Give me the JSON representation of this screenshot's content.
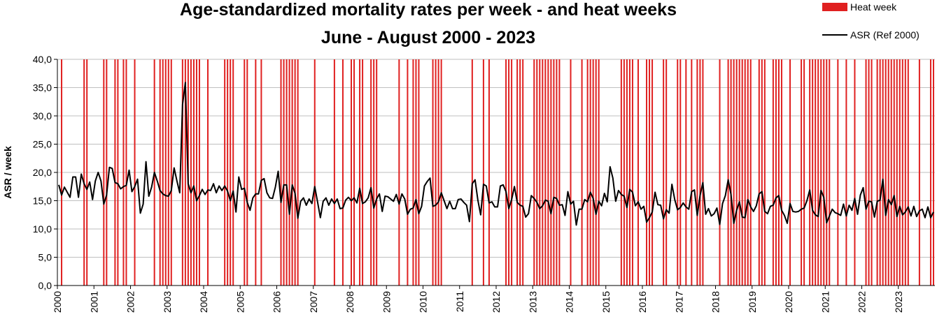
{
  "chart_data": {
    "type": "line",
    "title": "Age-standardized mortality rates per week - and heat weeks",
    "subtitle": "June - August  2000 - 2023",
    "y_label": "ASR / week",
    "categories": [
      "2000",
      null,
      null,
      null,
      null,
      null,
      null,
      null,
      null,
      null,
      null,
      null,
      null,
      "2001",
      null,
      null,
      null,
      null,
      null,
      null,
      null,
      null,
      null,
      null,
      null,
      null,
      "2002",
      null,
      null,
      null,
      null,
      null,
      null,
      null,
      null,
      null,
      null,
      null,
      null,
      "2003",
      null,
      null,
      null,
      null,
      null,
      null,
      null,
      null,
      null,
      null,
      null,
      null,
      "2004",
      null,
      null,
      null,
      null,
      null,
      null,
      null,
      null,
      null,
      null,
      null,
      null,
      "2005",
      null,
      null,
      null,
      null,
      null,
      null,
      null,
      null,
      null,
      null,
      null,
      null,
      "2006",
      null,
      null,
      null,
      null,
      null,
      null,
      null,
      null,
      null,
      null,
      null,
      null,
      "2007",
      null,
      null,
      null,
      null,
      null,
      null,
      null,
      null,
      null,
      null,
      null,
      null,
      "2008",
      null,
      null,
      null,
      null,
      null,
      null,
      null,
      null,
      null,
      null,
      null,
      null,
      "2009",
      null,
      null,
      null,
      null,
      null,
      null,
      null,
      null,
      null,
      null,
      null,
      null,
      "2010",
      null,
      null,
      null,
      null,
      null,
      null,
      null,
      null,
      null,
      null,
      null,
      null,
      "2011",
      null,
      null,
      null,
      null,
      null,
      null,
      null,
      null,
      null,
      null,
      null,
      null,
      "2012",
      null,
      null,
      null,
      null,
      null,
      null,
      null,
      null,
      null,
      null,
      null,
      null,
      "2013",
      null,
      null,
      null,
      null,
      null,
      null,
      null,
      null,
      null,
      null,
      null,
      null,
      "2014",
      null,
      null,
      null,
      null,
      null,
      null,
      null,
      null,
      null,
      null,
      null,
      null,
      "2015",
      null,
      null,
      null,
      null,
      null,
      null,
      null,
      null,
      null,
      null,
      null,
      null,
      "2016",
      null,
      null,
      null,
      null,
      null,
      null,
      null,
      null,
      null,
      null,
      null,
      null,
      "2017",
      null,
      null,
      null,
      null,
      null,
      null,
      null,
      null,
      null,
      null,
      null,
      null,
      "2018",
      null,
      null,
      null,
      null,
      null,
      null,
      null,
      null,
      null,
      null,
      null,
      null,
      "2019",
      null,
      null,
      null,
      null,
      null,
      null,
      null,
      null,
      null,
      null,
      null,
      null,
      "2020",
      null,
      null,
      null,
      null,
      null,
      null,
      null,
      null,
      null,
      null,
      null,
      null,
      "2021",
      null,
      null,
      null,
      null,
      null,
      null,
      null,
      null,
      null,
      null,
      null,
      null,
      "2022",
      null,
      null,
      null,
      null,
      null,
      null,
      null,
      null,
      null,
      null,
      null,
      null,
      "2023",
      null,
      null,
      null,
      null,
      null,
      null,
      null,
      null,
      null,
      null,
      null,
      null
    ],
    "series": [
      {
        "name": "Heat week",
        "type": "bar",
        "color": "#e02020",
        "value": 40,
        "x": [
          1,
          9,
          10,
          16,
          17,
          20,
          21,
          23,
          24,
          27,
          34,
          36,
          37,
          38,
          39,
          40,
          44,
          45,
          46,
          47,
          48,
          49,
          50,
          53,
          59,
          60,
          61,
          62,
          66,
          67,
          70,
          72,
          79,
          80,
          81,
          82,
          83,
          84,
          85,
          91,
          98,
          101,
          104,
          105,
          107,
          108,
          111,
          112,
          113,
          121,
          124,
          126,
          127,
          128,
          133,
          134,
          135,
          136,
          147,
          151,
          153,
          159,
          160,
          161,
          163,
          164,
          165,
          169,
          170,
          171,
          172,
          173,
          174,
          175,
          176,
          177,
          178,
          182,
          186,
          188,
          189,
          190,
          191,
          192,
          200,
          201,
          202,
          203,
          204,
          206,
          209,
          210,
          211,
          215,
          216,
          220,
          221,
          223,
          225,
          227,
          228,
          229,
          235,
          238,
          239,
          240,
          241,
          242,
          243,
          244,
          245,
          246,
          249,
          250,
          251,
          254,
          255,
          256,
          257,
          260,
          264,
          265,
          267,
          268,
          269,
          270,
          271,
          272,
          273,
          274,
          277,
          280,
          283,
          287,
          288,
          289,
          291,
          292,
          293,
          294,
          295,
          296,
          297,
          298,
          299,
          300,
          301,
          302,
          306,
          310,
          311
        ]
      },
      {
        "name": "ASR (Ref 2000)",
        "type": "line",
        "color": "#000000",
        "values": [
          17.8,
          16,
          17.4,
          16.5,
          15.6,
          19.2,
          19.2,
          15.6,
          19.7,
          18,
          17,
          18.3,
          15.2,
          18.5,
          20,
          18.5,
          14.4,
          16,
          20.9,
          20.7,
          18.2,
          18,
          17.1,
          17.5,
          17.7,
          20.4,
          16.6,
          17.5,
          18.8,
          12.8,
          14.4,
          21.9,
          15.8,
          17.4,
          20,
          18.5,
          16.8,
          16.2,
          15.9,
          15.8,
          16.8,
          20.8,
          18.5,
          16.4,
          32,
          35.9,
          18,
          16.4,
          17.6,
          15,
          15.9,
          17,
          16.1,
          16.9,
          16.8,
          18,
          16.4,
          17.6,
          16.8,
          17.6,
          16.7,
          15,
          16.7,
          13,
          19.2,
          17,
          17.2,
          14.7,
          13.3,
          15.5,
          16.2,
          16.2,
          18.6,
          18.9,
          16.4,
          15.5,
          15.4,
          17.4,
          20.2,
          14.7,
          17.8,
          17.8,
          12.6,
          17.8,
          16.3,
          11.9,
          14.9,
          15.5,
          14.2,
          15.3,
          14.5,
          17.5,
          14.8,
          12,
          14.9,
          15.5,
          14.2,
          15.3,
          14.5,
          15.3,
          13.6,
          13.7,
          15.1,
          15.6,
          15,
          15.5,
          14.6,
          17.2,
          14.5,
          14.8,
          15.5,
          17.3,
          13.7,
          15.3,
          16.2,
          13.1,
          15.8,
          15.7,
          15.3,
          14.9,
          16.1,
          14.4,
          16.2,
          15.3,
          12.6,
          13.5,
          13.7,
          15.2,
          12.7,
          14,
          17.6,
          18.4,
          19,
          14,
          14.2,
          14.8,
          16.4,
          15,
          13.6,
          14.9,
          13.6,
          13.6,
          15.2,
          15.3,
          14.7,
          14.2,
          11.3,
          18,
          18.7,
          15.1,
          12.5,
          17.9,
          17.6,
          14.6,
          14.8,
          13.9,
          13.9,
          17.6,
          17.8,
          16.6,
          13.6,
          15.2,
          17.5,
          14.7,
          14.2,
          14,
          12.1,
          12.7,
          15.9,
          15.4,
          14.7,
          13.6,
          14.1,
          15.1,
          14.9,
          12.7,
          15.6,
          15.4,
          14.2,
          14.3,
          12.4,
          16.6,
          14.4,
          14.9,
          10.7,
          13.5,
          13.5,
          15.2,
          14.8,
          16.5,
          15.4,
          12.6,
          14.9,
          14.1,
          16.3,
          14.8,
          21,
          19,
          14.9,
          16.8,
          16.1,
          15.8,
          13.8,
          17,
          16.5,
          14.1,
          14.8,
          13.5,
          14,
          11.2,
          12,
          13,
          16.5,
          14.3,
          14.2,
          11.8,
          13.4,
          12.8,
          17.9,
          15.2,
          13.4,
          13.8,
          14.6,
          13.9,
          13.5,
          16.6,
          16.9,
          12.4,
          15.9,
          18.2,
          12.6,
          13.6,
          12.3,
          12.7,
          13.7,
          10.8,
          14.5,
          15.9,
          18.7,
          16.1,
          11,
          13.3,
          14.8,
          12.1,
          12,
          15.2,
          13.9,
          13.1,
          14.1,
          16.2,
          16.6,
          13.1,
          12.7,
          14,
          14.2,
          15.5,
          15.9,
          13.3,
          12.4,
          11,
          14.5,
          13.1,
          13,
          13.1,
          13.5,
          13.7,
          15,
          16.9,
          13.3,
          12.5,
          12.2,
          16.8,
          15.6,
          11.1,
          12.3,
          13.5,
          12.9,
          12.7,
          12.4,
          14.4,
          12.3,
          14.2,
          13.3,
          15.4,
          12.6,
          16,
          17.3,
          13.5,
          14.9,
          14.8,
          12.1,
          14.9,
          15.1,
          18.8,
          12.4,
          15.2,
          14.3,
          15.9,
          12.2,
          14,
          12.5,
          13,
          13.9,
          12.3,
          14,
          12.2,
          13.2,
          13.5,
          12,
          13.9,
          12,
          13
        ]
      }
    ],
    "ylim": [
      0,
      40
    ],
    "yticks": [
      {
        "value": 0,
        "label": "0,0"
      },
      {
        "value": 5,
        "label": "5,0"
      },
      {
        "value": 10,
        "label": "10,0"
      },
      {
        "value": 15,
        "label": "15,0"
      },
      {
        "value": 20,
        "label": "20,0"
      },
      {
        "value": 25,
        "label": "25,0"
      },
      {
        "value": 30,
        "label": "30,0"
      },
      {
        "value": 35,
        "label": "35,0"
      },
      {
        "value": 40,
        "label": "40,0"
      }
    ],
    "grid": true,
    "legend": "top-right"
  }
}
